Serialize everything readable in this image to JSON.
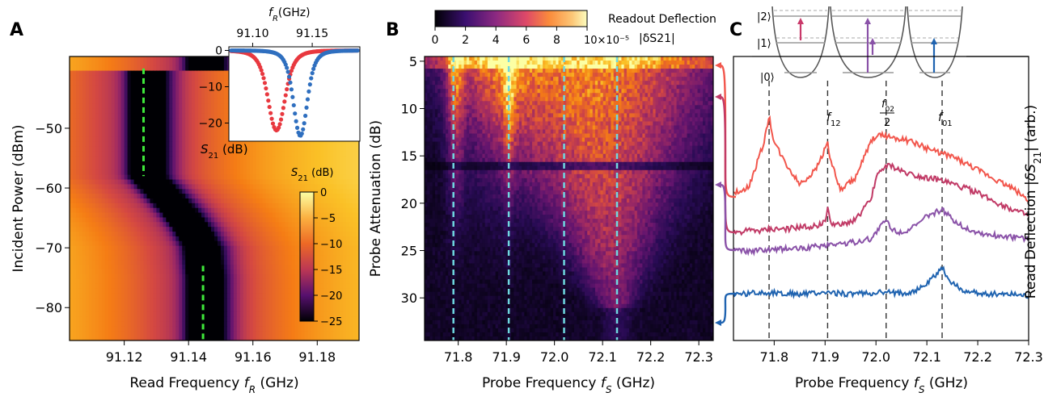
{
  "panels": {
    "A": {
      "letter": "A",
      "xlabel": "Read Frequency f_R (GHz)",
      "ylabel": "Incident Power (dBm)",
      "xticks": [
        "91.12",
        "91.14",
        "91.16",
        "91.18"
      ],
      "yticks": [
        "−50",
        "−60",
        "−70",
        "−80"
      ],
      "colorbar_label": "S21 (dB)",
      "colorbar_ticks": [
        "0",
        "−5",
        "−10",
        "−15",
        "−20",
        "−25"
      ],
      "inset_xlabel": "f_R(GHz)",
      "inset_ylabel": "S21 (dB)",
      "inset_xticks": [
        "91.10",
        "91.15"
      ],
      "inset_yticks": [
        "0",
        "−10",
        "−20"
      ]
    },
    "B": {
      "letter": "B",
      "xlabel": "Probe Frequency f_S (GHz)",
      "ylabel": "Probe Attenuation (dB)",
      "xticks": [
        "71.8",
        "71.9",
        "72.0",
        "72.1",
        "72.2",
        "72.3"
      ],
      "yticks": [
        "5",
        "10",
        "15",
        "20",
        "25",
        "30"
      ],
      "colorbar_title": "Readout Deflection",
      "colorbar_subtitle": "|δS21|",
      "colorbar_ticks": [
        "0",
        "2",
        "4",
        "6",
        "8"
      ],
      "colorbar_scale": "10×10⁻⁵"
    },
    "C": {
      "letter": "C",
      "xlabel": "Probe Frequency f_S (GHz)",
      "ylabel": "Read Deflection |δS21| (arb.)",
      "xticks": [
        "71.8",
        "71.9",
        "72.0",
        "72.1",
        "72.2",
        "72.3"
      ],
      "annot_f12": "f12",
      "annot_f02": "f02",
      "annot_f02_den": "2",
      "annot_f01": "f01",
      "levels": [
        "|2⟩",
        "|1⟩",
        "|0⟩"
      ]
    }
  },
  "chart_data": [
    {
      "type": "heatmap",
      "panel": "A",
      "xlabel": "Read Frequency f_R (GHz)",
      "ylabel": "Incident Power (dBm)",
      "xlim": [
        91.103,
        91.193
      ],
      "ylim": [
        -85.5,
        -38
      ],
      "colorbar": {
        "label": "S21 (dB)",
        "range": [
          -25,
          0
        ]
      },
      "resonance_path": [
        {
          "power": -40,
          "freq": 91.126
        },
        {
          "power": -58,
          "freq": 91.126
        },
        {
          "power": -61,
          "freq": 91.131
        },
        {
          "power": -64,
          "freq": 91.136
        },
        {
          "power": -67,
          "freq": 91.14
        },
        {
          "power": -70,
          "freq": 91.143
        },
        {
          "power": -75,
          "freq": 91.144
        },
        {
          "power": -85.5,
          "freq": 91.144
        }
      ],
      "dashed_markers": [
        {
          "freq": 91.126,
          "power_range": [
            -40,
            -58
          ]
        },
        {
          "freq": 91.1445,
          "power_range": [
            -73,
            -85.5
          ]
        }
      ]
    },
    {
      "type": "line",
      "panel": "A-inset",
      "xlabel": "f_R(GHz)",
      "ylabel": "S21 (dB)",
      "xlim": [
        91.08,
        91.19
      ],
      "ylim": [
        -25,
        1
      ],
      "series": [
        {
          "name": "",
          "color": "#e8383f",
          "center": 91.12,
          "depth": -22,
          "width": 0.011
        },
        {
          "name": "",
          "color": "#2f6fbf",
          "center": 91.14,
          "depth": -23.5,
          "width": 0.009
        }
      ]
    },
    {
      "type": "heatmap",
      "panel": "B",
      "xlabel": "Probe Frequency f_S (GHz)",
      "ylabel": "Probe Attenuation (dB)",
      "xlim": [
        71.73,
        72.33
      ],
      "ylim": [
        4.5,
        34.5
      ],
      "colorbar": {
        "label": "Readout Deflection |δS21|",
        "range": [
          0,
          10
        ],
        "scale": "10×10⁻⁵"
      },
      "dashed_markers": [
        71.79,
        71.905,
        72.02,
        72.13
      ]
    },
    {
      "type": "line",
      "panel": "C",
      "xlabel": "Probe Frequency f_S (GHz)",
      "ylabel": "Read Deflection |δS21| (arb.)",
      "xlim": [
        71.72,
        72.3
      ],
      "x": [
        71.72,
        71.75,
        71.78,
        71.79,
        71.8,
        71.82,
        71.85,
        71.88,
        71.9,
        71.905,
        71.91,
        71.93,
        71.96,
        71.99,
        72.0,
        72.02,
        72.03,
        72.05,
        72.08,
        72.1,
        72.13,
        72.15,
        72.18,
        72.21,
        72.24,
        72.27,
        72.3
      ],
      "series": [
        {
          "name": "",
          "attenuation": 5,
          "color": "#f2564c",
          "values": [
            0.3,
            0.34,
            0.62,
            0.78,
            0.62,
            0.5,
            0.36,
            0.44,
            0.58,
            0.62,
            0.52,
            0.32,
            0.4,
            0.62,
            0.66,
            0.66,
            0.65,
            0.64,
            0.61,
            0.58,
            0.55,
            0.53,
            0.48,
            0.43,
            0.38,
            0.33,
            0.26
          ]
        },
        {
          "name": "",
          "attenuation": 9,
          "color": "#c13a66",
          "values": [
            0.06,
            0.07,
            0.07,
            0.08,
            0.08,
            0.08,
            0.09,
            0.1,
            0.12,
            0.22,
            0.12,
            0.1,
            0.14,
            0.26,
            0.4,
            0.48,
            0.47,
            0.44,
            0.41,
            0.4,
            0.38,
            0.36,
            0.33,
            0.29,
            0.24,
            0.2,
            0.16
          ]
        },
        {
          "name": "",
          "attenuation": 18,
          "color": "#8a52a8",
          "values": [
            -0.05,
            -0.06,
            -0.05,
            -0.05,
            -0.05,
            -0.04,
            -0.04,
            -0.03,
            -0.02,
            -0.02,
            -0.01,
            -0.01,
            0.0,
            0.02,
            0.06,
            0.14,
            0.08,
            0.06,
            0.1,
            0.16,
            0.2,
            0.14,
            0.08,
            0.05,
            0.04,
            0.03,
            0.02
          ]
        },
        {
          "name": "",
          "attenuation": 32,
          "color": "#1f63b0",
          "values": [
            -0.32,
            -0.32,
            -0.31,
            -0.32,
            -0.31,
            -0.32,
            -0.32,
            -0.32,
            -0.31,
            -0.32,
            -0.31,
            -0.32,
            -0.32,
            -0.32,
            -0.31,
            -0.32,
            -0.31,
            -0.32,
            -0.3,
            -0.26,
            -0.16,
            -0.26,
            -0.31,
            -0.32,
            -0.32,
            -0.32,
            -0.33
          ]
        }
      ],
      "dashed_markers": [
        71.79,
        71.905,
        72.02,
        72.13
      ]
    }
  ]
}
